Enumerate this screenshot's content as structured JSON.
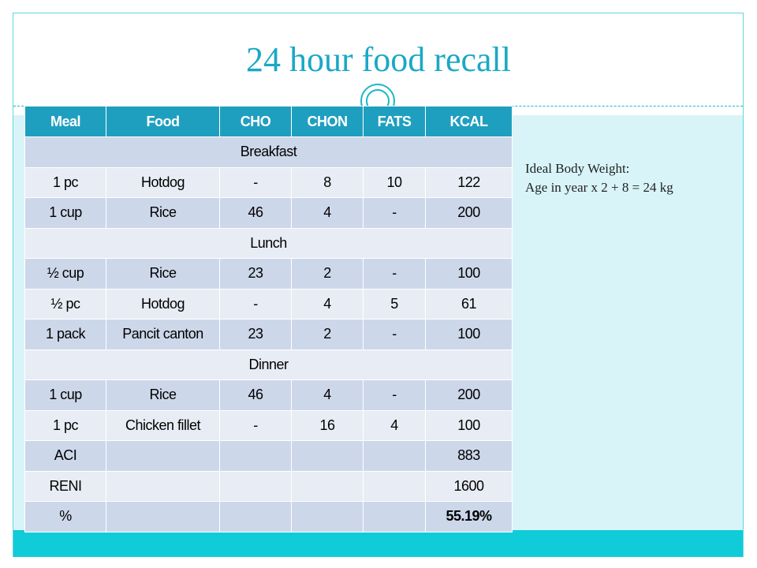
{
  "title": "24 hour food recall",
  "side_note": {
    "line1": "Ideal Body Weight:",
    "line2": "Age in year x 2 + 8 = 24 kg"
  },
  "table": {
    "headers": [
      "Meal",
      "Food",
      "CHO",
      "CHON",
      "FATS",
      "KCAL"
    ],
    "sections": {
      "breakfast": "Breakfast",
      "lunch": "Lunch",
      "dinner": "Dinner"
    },
    "rows": {
      "b1": [
        "1 pc",
        "Hotdog",
        "-",
        "8",
        "10",
        "122"
      ],
      "b2": [
        "1 cup",
        "Rice",
        "46",
        "4",
        "-",
        "200"
      ],
      "l1": [
        "½ cup",
        "Rice",
        "23",
        "2",
        "-",
        "100"
      ],
      "l2": [
        "½ pc",
        "Hotdog",
        "-",
        "4",
        "5",
        "61"
      ],
      "l3": [
        "1 pack",
        "Pancit canton",
        "23",
        "2",
        "-",
        "100"
      ],
      "d1": [
        "1 cup",
        "Rice",
        "46",
        "4",
        "-",
        "200"
      ],
      "d2": [
        "1 pc",
        "Chicken fillet",
        "-",
        "16",
        "4",
        "100"
      ]
    },
    "summary": {
      "aci_label": "ACI",
      "aci_value": "883",
      "reni_label": "RENI",
      "reni_value": "1600",
      "pct_label": "%",
      "pct_value": "55.19%"
    }
  },
  "colors": {
    "header_bg": "#1f9fbf",
    "row_dark": "#cdd7ea",
    "row_light": "#e8ecf4",
    "accent": "#10cbd8",
    "title": "#1aa8c6"
  }
}
